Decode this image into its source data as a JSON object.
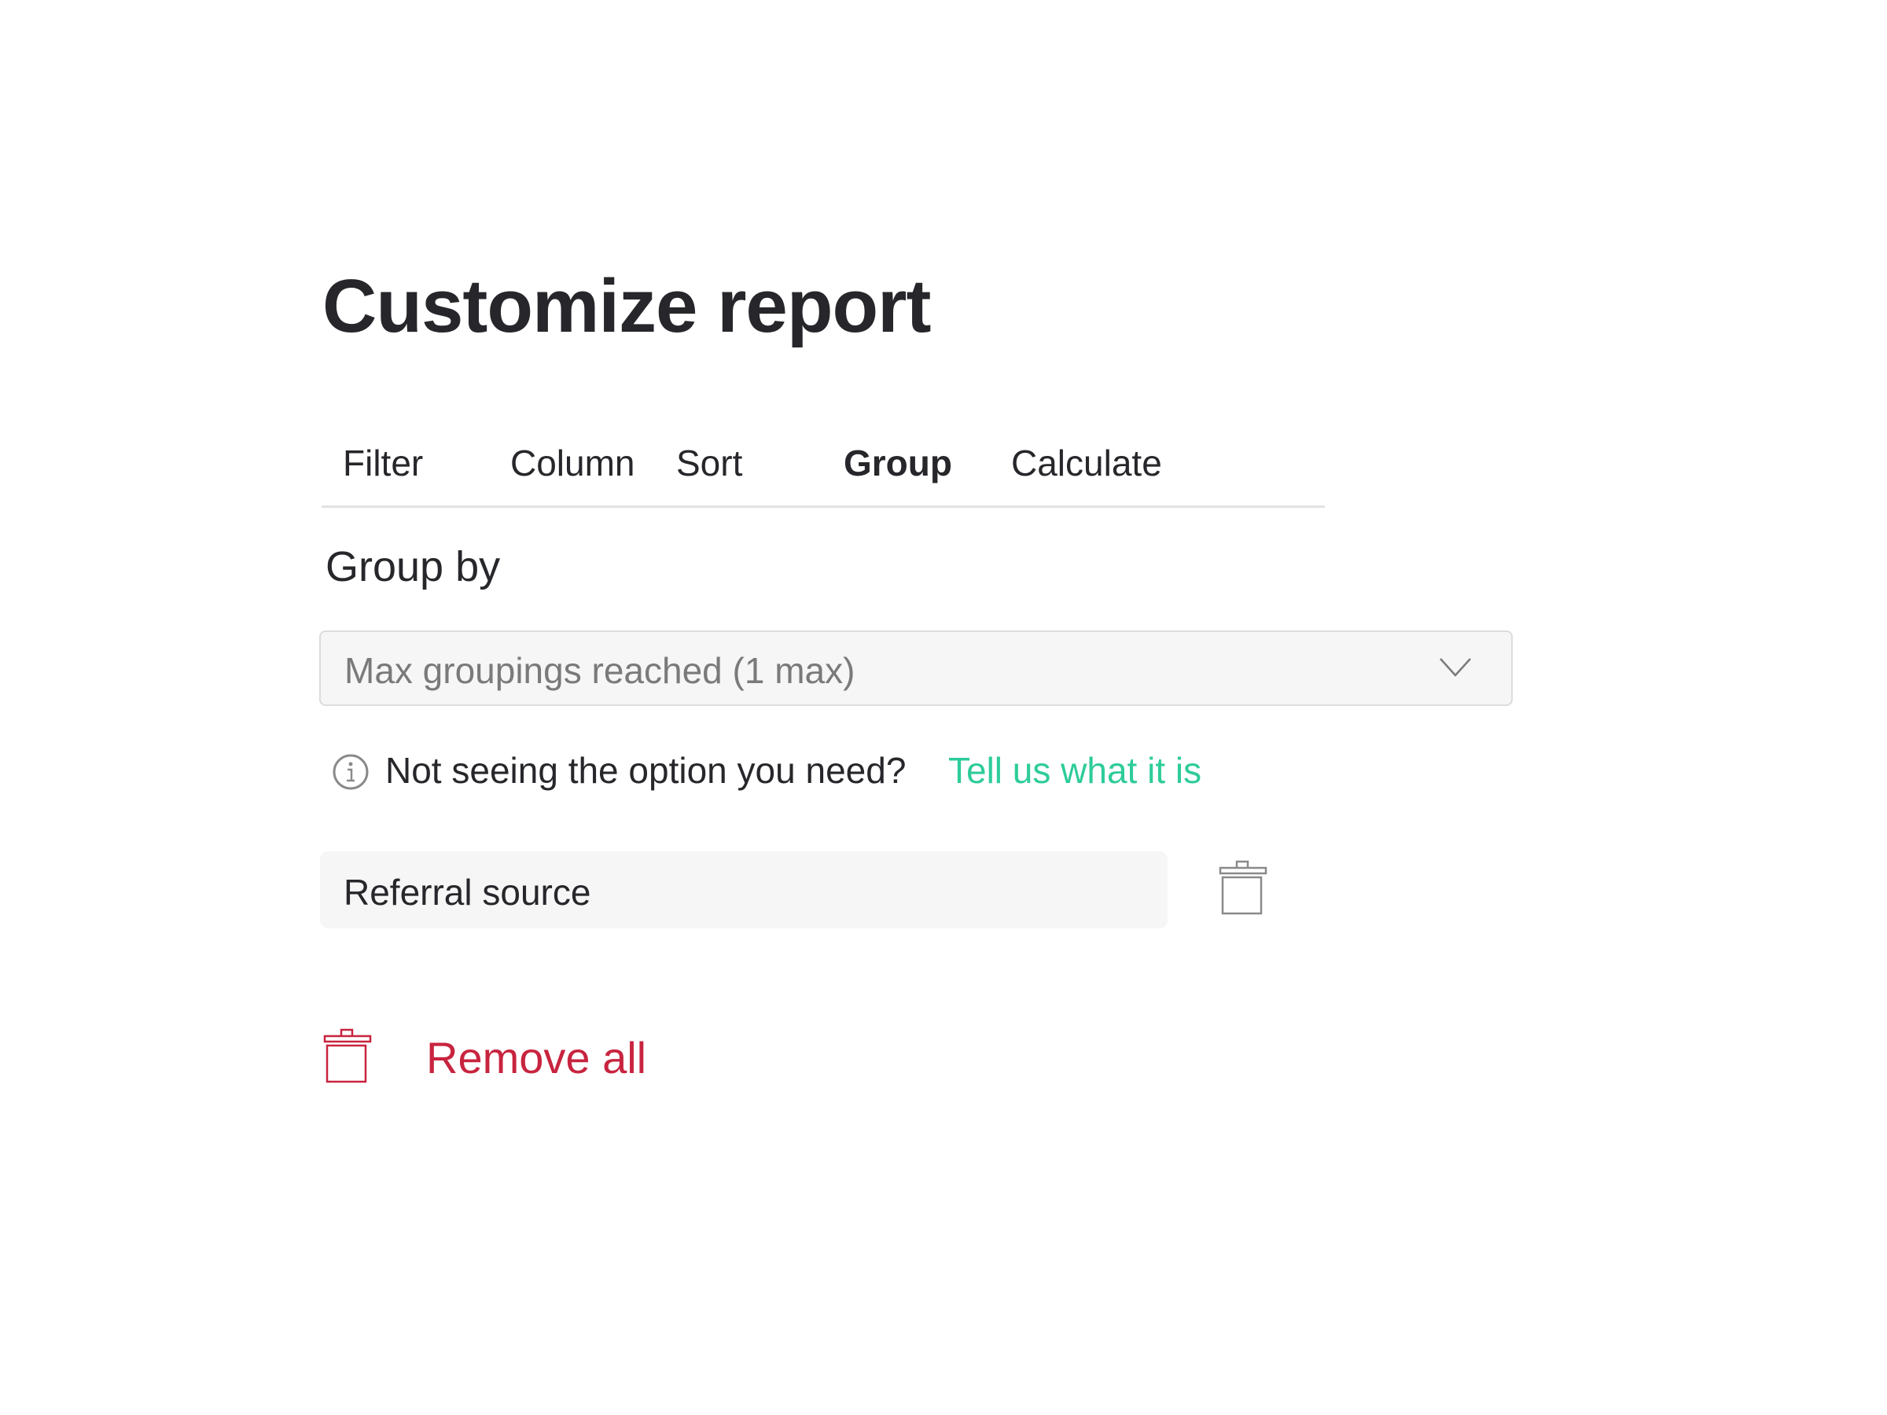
{
  "title": "Customize report",
  "tabs": [
    {
      "label": "Filter",
      "active": false
    },
    {
      "label": "Column",
      "active": false
    },
    {
      "label": "Sort",
      "active": false
    },
    {
      "label": "Group",
      "active": true
    },
    {
      "label": "Calculate",
      "active": false
    }
  ],
  "group_by": {
    "heading": "Group by",
    "dropdown_value": "Max groupings reached (1 max)",
    "dropdown_icon": "chevron-down-icon",
    "info_text": "Not seeing the option you need?",
    "info_link": "Tell us what it is",
    "groupings": [
      {
        "label": "Referral source",
        "icon": "trash-icon"
      }
    ]
  },
  "remove_all": {
    "label": "Remove all",
    "icon": "trash-icon"
  },
  "colors": {
    "text": "#27272b",
    "link": "#2ecc9a",
    "danger": "#c8243f",
    "muted": "#7a7a7a"
  }
}
